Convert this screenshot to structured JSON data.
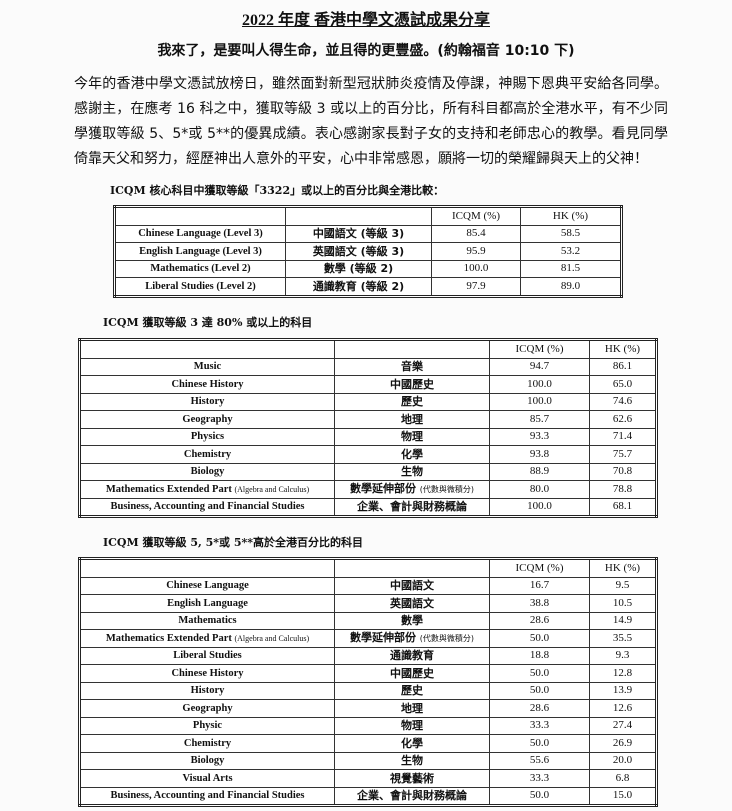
{
  "header": {
    "title": "2022 年度 香港中學文憑試成果分享",
    "verse": "我來了，是要叫人得生命，並且得的更豐盛。(約翰福音 10:10 下)"
  },
  "intro": "今年的香港中學文憑試放榜日，雖然面對新型冠狀肺炎疫情及停課，神賜下恩典平安給各同學。感謝主，在應考 16 科之中，獲取等級 3 或以上的百分比，所有科目都高於全港水平，有不少同學獲取等級 5、5*或 5**的優異成績。表心感謝家長對子女的支持和老師忠心的教學。看見同學倚靠天父和努力，經歷神出人意外的平安，心中非常感恩，願將一切的榮耀歸與天上的父神！",
  "tables": [
    {
      "heading": "ICQM 核心科目中獲取等級「3322」或以上的百分比與全港比較：",
      "columns": [
        "ICQM (%)",
        "HK (%)"
      ],
      "rows": [
        {
          "en": "Chinese Language (Level 3)",
          "zh": "中國語文 (等級 3)",
          "icqm": "85.4",
          "hk": "58.5"
        },
        {
          "en": "English Language (Level 3)",
          "zh": "英國語文 (等級 3)",
          "icqm": "95.9",
          "hk": "53.2"
        },
        {
          "en": "Mathematics (Level 2)",
          "zh": "數學 (等級 2)",
          "icqm": "100.0",
          "hk": "81.5"
        },
        {
          "en": "Liberal Studies (Level 2)",
          "zh": "通識教育 (等級 2)",
          "icqm": "97.9",
          "hk": "89.0"
        }
      ]
    },
    {
      "heading": "ICQM 獲取等級 3 達 80% 或以上的科目",
      "columns": [
        "ICQM (%)",
        "HK (%)"
      ],
      "rows": [
        {
          "en": "Music",
          "zh": "音樂",
          "icqm": "94.7",
          "hk": "86.1"
        },
        {
          "en": "Chinese History",
          "zh": "中國歷史",
          "icqm": "100.0",
          "hk": "65.0"
        },
        {
          "en": "History",
          "zh": "歷史",
          "icqm": "100.0",
          "hk": "74.6"
        },
        {
          "en": "Geography",
          "zh": "地理",
          "icqm": "85.7",
          "hk": "62.6"
        },
        {
          "en": "Physics",
          "zh": "物理",
          "icqm": "93.3",
          "hk": "71.4"
        },
        {
          "en": "Chemistry",
          "zh": "化學",
          "icqm": "93.8",
          "hk": "75.7"
        },
        {
          "en": "Biology",
          "zh": "生物",
          "icqm": "88.9",
          "hk": "70.8"
        },
        {
          "en": "Mathematics Extended Part",
          "en_note": "(Algebra and Calculus)",
          "zh": "數學延伸部份",
          "zh_note": "(代數與微積分)",
          "icqm": "80.0",
          "hk": "78.8"
        },
        {
          "en": "Business, Accounting and Financial Studies",
          "zh": "企業、會計與財務概論",
          "icqm": "100.0",
          "hk": "68.1"
        }
      ]
    },
    {
      "heading": "ICQM 獲取等級 5, 5*或 5**高於全港百分比的科目",
      "columns": [
        "ICQM (%)",
        "HK (%)"
      ],
      "rows": [
        {
          "en": "Chinese Language",
          "zh": "中國語文",
          "icqm": "16.7",
          "hk": "9.5"
        },
        {
          "en": "English Language",
          "zh": "英國語文",
          "icqm": "38.8",
          "hk": "10.5"
        },
        {
          "en": "Mathematics",
          "zh": "數學",
          "icqm": "28.6",
          "hk": "14.9"
        },
        {
          "en": "Mathematics Extended Part",
          "en_note": "(Algebra and Calculus)",
          "zh": "數學延伸部份",
          "zh_note": "(代數與微積分)",
          "icqm": "50.0",
          "hk": "35.5"
        },
        {
          "en": "Liberal Studies",
          "zh": "通識教育",
          "icqm": "18.8",
          "hk": "9.3"
        },
        {
          "en": "Chinese History",
          "zh": "中國歷史",
          "icqm": "50.0",
          "hk": "12.8"
        },
        {
          "en": "History",
          "zh": "歷史",
          "icqm": "50.0",
          "hk": "13.9"
        },
        {
          "en": "Geography",
          "zh": "地理",
          "icqm": "28.6",
          "hk": "12.6"
        },
        {
          "en": "Physic",
          "zh": "物理",
          "icqm": "33.3",
          "hk": "27.4"
        },
        {
          "en": "Chemistry",
          "zh": "化學",
          "icqm": "50.0",
          "hk": "26.9"
        },
        {
          "en": "Biology",
          "zh": "生物",
          "icqm": "55.6",
          "hk": "20.0"
        },
        {
          "en": "Visual Arts",
          "zh": "視覺藝術",
          "icqm": "33.3",
          "hk": "6.8"
        },
        {
          "en": "Business, Accounting and Financial Studies",
          "zh": "企業、會計與財務概論",
          "icqm": "50.0",
          "hk": "15.0"
        }
      ]
    }
  ]
}
